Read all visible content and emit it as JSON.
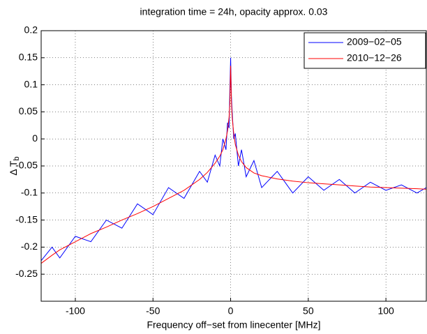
{
  "chart_data": {
    "type": "line",
    "title": "integration time = 24h, opacity approx. 0.03",
    "xlabel": "Frequency off−set from linecenter [MHz]",
    "ylabel": {
      "text": "Δ T",
      "subscript": "b"
    },
    "x": [
      -122,
      -115,
      -110,
      -100,
      -90,
      -80,
      -70,
      -60,
      -50,
      -40,
      -30,
      -20,
      -15,
      -10,
      -7,
      -5,
      -3,
      -2,
      -1,
      -0.5,
      0,
      0.5,
      1,
      2,
      3,
      5,
      7,
      10,
      15,
      20,
      30,
      40,
      50,
      60,
      70,
      80,
      90,
      100,
      110,
      120,
      126
    ],
    "series": [
      {
        "name": "2009−02−05",
        "color": "#0000ff",
        "values": [
          -0.225,
          -0.2,
          -0.22,
          -0.18,
          -0.19,
          -0.15,
          -0.165,
          -0.12,
          -0.14,
          -0.09,
          -0.11,
          -0.06,
          -0.08,
          -0.03,
          -0.05,
          0.0,
          -0.02,
          0.03,
          0.02,
          0.09,
          0.15,
          0.08,
          0.05,
          0.0,
          0.01,
          -0.05,
          -0.02,
          -0.07,
          -0.04,
          -0.09,
          -0.06,
          -0.1,
          -0.07,
          -0.095,
          -0.075,
          -0.1,
          -0.08,
          -0.095,
          -0.085,
          -0.1,
          -0.09
        ]
      },
      {
        "name": "2010−12−26",
        "color": "#ff0000",
        "values": [
          -0.23,
          -0.215,
          -0.205,
          -0.19,
          -0.175,
          -0.163,
          -0.15,
          -0.138,
          -0.125,
          -0.11,
          -0.095,
          -0.075,
          -0.062,
          -0.045,
          -0.032,
          -0.02,
          0.0,
          0.015,
          0.04,
          0.065,
          0.135,
          0.07,
          0.04,
          0.01,
          -0.01,
          -0.03,
          -0.042,
          -0.053,
          -0.063,
          -0.068,
          -0.074,
          -0.078,
          -0.081,
          -0.083,
          -0.085,
          -0.087,
          -0.089,
          -0.09,
          -0.091,
          -0.092,
          -0.093
        ]
      }
    ],
    "xlim": [
      -122,
      126
    ],
    "xticks": [
      -100,
      -50,
      0,
      50,
      100
    ],
    "ylim": [
      -0.3,
      0.2
    ],
    "yticks": [
      -0.25,
      -0.2,
      -0.15,
      -0.1,
      -0.05,
      0,
      0.05,
      0.1,
      0.15,
      0.2
    ],
    "grid": true,
    "legend": "northeast"
  }
}
